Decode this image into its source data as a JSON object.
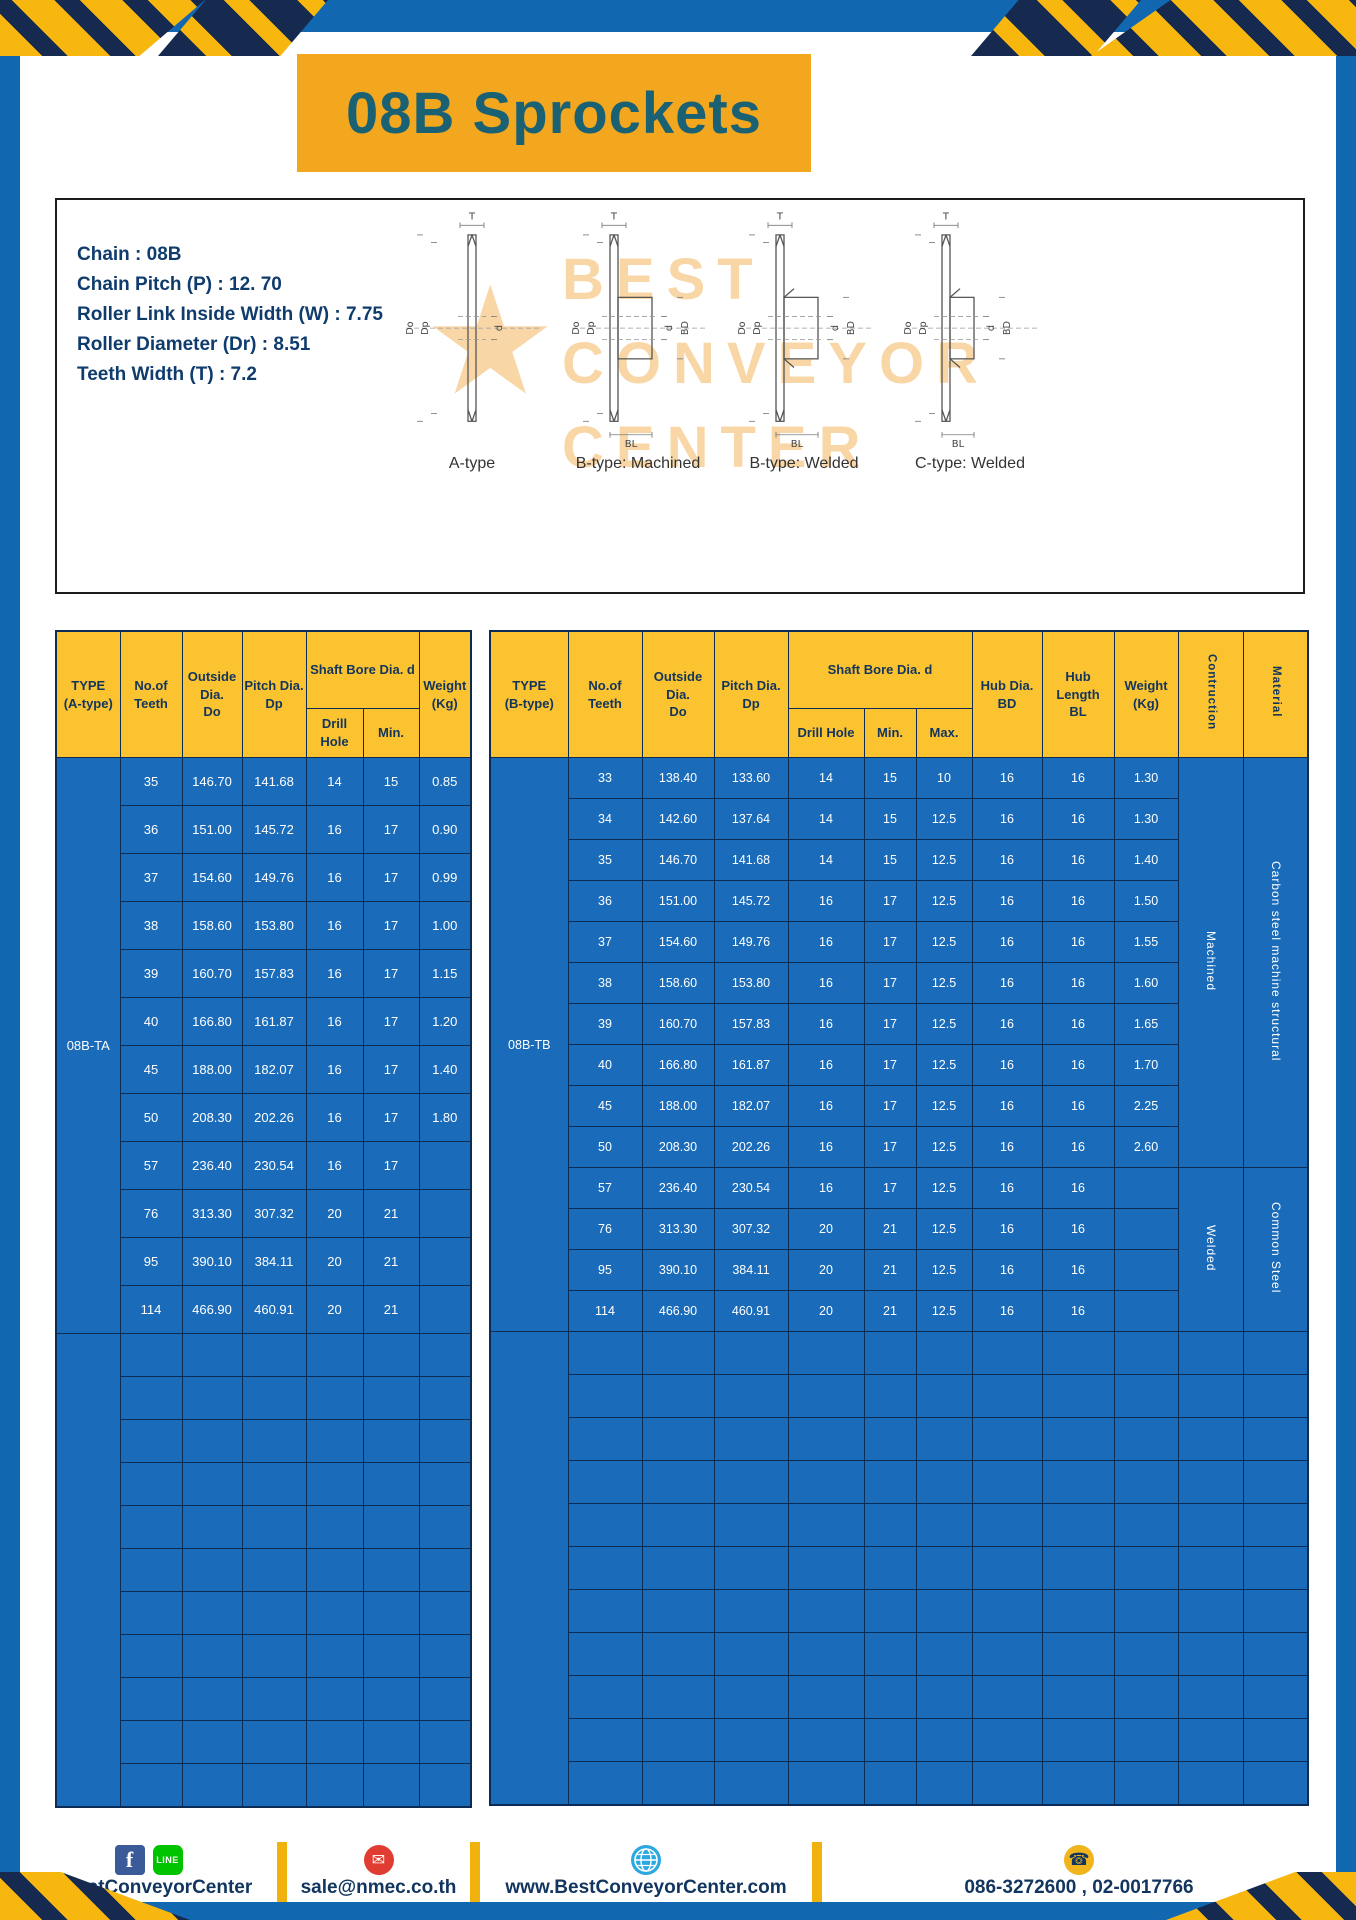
{
  "title": "08B Sprockets",
  "colors": {
    "frame_blue": "#1267b1",
    "banner_yellow": "#f2a71e",
    "banner_text_teal": "#1b6174",
    "table_header_yellow": "#fcc330",
    "table_cell_blue": "#1a6cba",
    "grid_navy": "#0c2c55",
    "accent_yellow": "#f2b20e",
    "navy_text": "#11355e"
  },
  "specs": [
    "Chain : 08B",
    "Chain Pitch (P) : 12. 70",
    "Roller Link Inside Width (W) : 7.75",
    "Roller Diameter (Dr) : 8.51",
    "Teeth Width (T) : 7.2"
  ],
  "watermark": {
    "star": "★",
    "lines": [
      "BEST",
      "CONVEYOR",
      "CENTER"
    ]
  },
  "diagrams": [
    {
      "caption": "A-type",
      "dims": {
        "t": "T",
        "outer": "Do",
        "pitch": "Dp",
        "bore": "d",
        "hub": "",
        "hub_len": ""
      }
    },
    {
      "caption": "B-type: Machined",
      "dims": {
        "t": "T",
        "outer": "Do",
        "pitch": "Dp",
        "bore": "d",
        "hub": "BD",
        "hub_len": "BL"
      }
    },
    {
      "caption": "B-type: Welded",
      "dims": {
        "t": "T",
        "outer": "Do",
        "pitch": "Dp",
        "bore": "d",
        "hub": "BD",
        "hub_len": "BL"
      }
    },
    {
      "caption": "C-type: Welded",
      "dims": {
        "t": "T",
        "outer": "Do",
        "pitch": "Dp",
        "bore": "d",
        "hub": "BD",
        "hub_len": "BL"
      }
    }
  ],
  "left_table": {
    "headers": {
      "type": "TYPE\n(A-type)",
      "teeth": "No.of\nTeeth",
      "outside": "Outside\nDia.\nDo",
      "pitch": "Pitch Dia.\nDp",
      "shaft": "Shaft Bore Dia. d",
      "drill": "Drill Hole",
      "min": "Min.",
      "weight": "Weight\n(Kg)"
    },
    "type_value": "08B-TA",
    "rows": [
      [
        "35",
        "146.70",
        "141.68",
        "14",
        "15",
        "0.85"
      ],
      [
        "36",
        "151.00",
        "145.72",
        "16",
        "17",
        "0.90"
      ],
      [
        "37",
        "154.60",
        "149.76",
        "16",
        "17",
        "0.99"
      ],
      [
        "38",
        "158.60",
        "153.80",
        "16",
        "17",
        "1.00"
      ],
      [
        "39",
        "160.70",
        "157.83",
        "16",
        "17",
        "1.15"
      ],
      [
        "40",
        "166.80",
        "161.87",
        "16",
        "17",
        "1.20"
      ],
      [
        "45",
        "188.00",
        "182.07",
        "16",
        "17",
        "1.40"
      ],
      [
        "50",
        "208.30",
        "202.26",
        "16",
        "17",
        "1.80"
      ],
      [
        "57",
        "236.40",
        "230.54",
        "16",
        "17",
        ""
      ],
      [
        "76",
        "313.30",
        "307.32",
        "20",
        "21",
        ""
      ],
      [
        "95",
        "390.10",
        "384.11",
        "20",
        "21",
        ""
      ],
      [
        "114",
        "466.90",
        "460.91",
        "20",
        "21",
        ""
      ]
    ],
    "empty_rows": 11
  },
  "right_table": {
    "headers": {
      "type": "TYPE\n(B-type)",
      "teeth": "No.of\nTeeth",
      "outside": "Outside\nDia.\nDo",
      "pitch": "Pitch Dia.\nDp",
      "shaft": "Shaft Bore Dia. d",
      "drill": "Drill Hole",
      "min": "Min.",
      "max": "Max.",
      "hub_dia": "Hub Dia.\nBD",
      "hub_len": "Hub\nLength\nBL",
      "weight": "Weight\n(Kg)",
      "construction": "Contruction",
      "material": "Material"
    },
    "type_value": "08B-TB",
    "rows": [
      [
        "33",
        "138.40",
        "133.60",
        "14",
        "15",
        "10",
        "16",
        "16",
        "1.30"
      ],
      [
        "34",
        "142.60",
        "137.64",
        "14",
        "15",
        "12.5",
        "16",
        "16",
        "1.30"
      ],
      [
        "35",
        "146.70",
        "141.68",
        "14",
        "15",
        "12.5",
        "16",
        "16",
        "1.40"
      ],
      [
        "36",
        "151.00",
        "145.72",
        "16",
        "17",
        "12.5",
        "16",
        "16",
        "1.50"
      ],
      [
        "37",
        "154.60",
        "149.76",
        "16",
        "17",
        "12.5",
        "16",
        "16",
        "1.55"
      ],
      [
        "38",
        "158.60",
        "153.80",
        "16",
        "17",
        "12.5",
        "16",
        "16",
        "1.60"
      ],
      [
        "39",
        "160.70",
        "157.83",
        "16",
        "17",
        "12.5",
        "16",
        "16",
        "1.65"
      ],
      [
        "40",
        "166.80",
        "161.87",
        "16",
        "17",
        "12.5",
        "16",
        "16",
        "1.70"
      ],
      [
        "45",
        "188.00",
        "182.07",
        "16",
        "17",
        "12.5",
        "16",
        "16",
        "2.25"
      ],
      [
        "50",
        "208.30",
        "202.26",
        "16",
        "17",
        "12.5",
        "16",
        "16",
        "2.60"
      ],
      [
        "57",
        "236.40",
        "230.54",
        "16",
        "17",
        "12.5",
        "16",
        "16",
        ""
      ],
      [
        "76",
        "313.30",
        "307.32",
        "20",
        "21",
        "12.5",
        "16",
        "16",
        ""
      ],
      [
        "95",
        "390.10",
        "384.11",
        "20",
        "21",
        "12.5",
        "16",
        "16",
        ""
      ],
      [
        "114",
        "466.90",
        "460.91",
        "20",
        "21",
        "12.5",
        "16",
        "16",
        ""
      ]
    ],
    "construction_spans": [
      {
        "label": "Machined",
        "rows": 10
      },
      {
        "label": "Welded",
        "rows": 4
      }
    ],
    "material_spans": [
      {
        "label": "Carbon steel  machine structural",
        "rows": 10
      },
      {
        "label": "Common  Steel",
        "rows": 4
      }
    ],
    "empty_rows": 11
  },
  "footer": {
    "facebook_letter": "f",
    "line_label": "LINE",
    "social_handle": "@BestConveyorCenter",
    "email": "sale@nmec.co.th",
    "website": "www.BestConveyorCenter.com",
    "phone": "086-3272600 , 02-0017766"
  }
}
